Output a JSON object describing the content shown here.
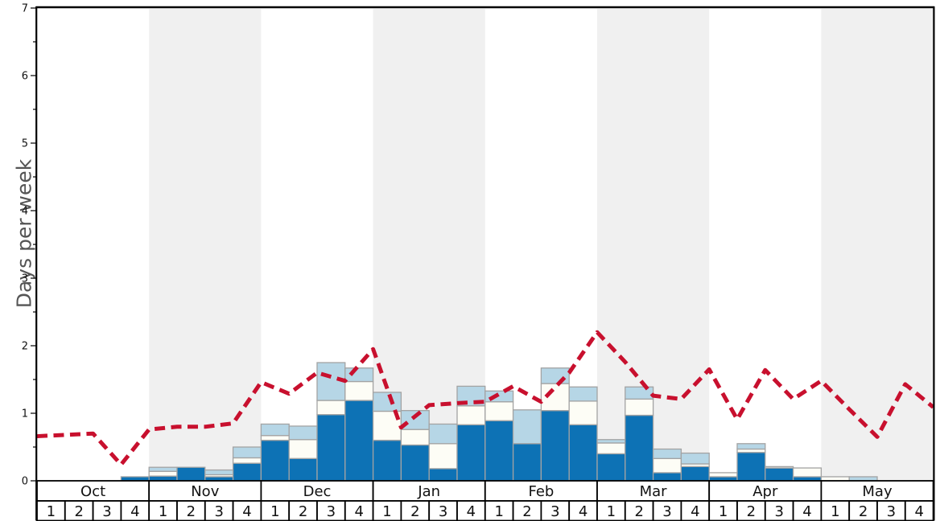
{
  "chart_data": {
    "type": "bar",
    "subtype": "weekly_stacked_bars_with_dashed_average_line",
    "title": "",
    "xlabel": "",
    "ylabel": "Days per week",
    "ylim": [
      0,
      7
    ],
    "y_major_ticks": [
      0,
      1,
      2,
      3,
      4,
      5,
      6,
      7
    ],
    "y_minor_tick_step": 0.5,
    "grid": "off",
    "legend": "none",
    "months": [
      "Oct",
      "Nov",
      "Dec",
      "Jan",
      "Feb",
      "Mar",
      "Apr",
      "May"
    ],
    "weeks_per_month": 4,
    "week_labels": [
      "1",
      "2",
      "3",
      "4"
    ],
    "shaded_months": [
      "Nov",
      "Jan",
      "Mar",
      "May"
    ],
    "series": [
      {
        "name": "dark_blue_days",
        "color": "#0d72b5",
        "values": [
          0,
          0,
          0,
          0.06,
          0.07,
          0.2,
          0.06,
          0.26,
          0.6,
          0.33,
          0.98,
          1.19,
          0.6,
          0.53,
          0.18,
          0.83,
          0.89,
          0.55,
          1.04,
          0.83,
          0.4,
          0.97,
          0.12,
          0.21,
          0.06,
          0.42,
          0.19,
          0.06,
          0,
          0,
          0,
          0
        ]
      },
      {
        "name": "offwhite_days",
        "color": "#fdfdf6",
        "values": [
          0,
          0,
          0,
          0,
          0.07,
          0,
          0.03,
          0.08,
          0.07,
          0.28,
          0.21,
          0.28,
          0.43,
          0.23,
          0.37,
          0.28,
          0.28,
          0,
          0.4,
          0.35,
          0.16,
          0.24,
          0.21,
          0.04,
          0.06,
          0.05,
          0.02,
          0.13,
          0.06,
          0,
          0,
          0
        ]
      },
      {
        "name": "light_blue_days",
        "color": "#b6d6e6",
        "values": [
          0,
          0,
          0,
          0,
          0.06,
          0,
          0.07,
          0.16,
          0.17,
          0.2,
          0.56,
          0.2,
          0.28,
          0.28,
          0.29,
          0.29,
          0.16,
          0.5,
          0.23,
          0.21,
          0.05,
          0.18,
          0.14,
          0.16,
          0,
          0.08,
          0,
          0,
          0,
          0.06,
          0,
          0
        ]
      }
    ],
    "line_series": {
      "name": "dashed_average_line",
      "color": "#c8102e",
      "style": "dashed",
      "x_positions": "week_boundaries",
      "values": [
        0.66,
        0.68,
        0.7,
        0.24,
        0.76,
        0.8,
        0.8,
        0.85,
        1.46,
        1.29,
        1.6,
        1.48,
        1.95,
        0.79,
        1.12,
        1.15,
        1.17,
        1.4,
        1.17,
        1.6,
        2.2,
        1.76,
        1.26,
        1.21,
        1.65,
        0.91,
        1.64,
        1.21,
        1.48,
        1.06,
        0.65,
        1.43,
        1.09
      ]
    },
    "colors": {
      "month_band": "#f0f0f0",
      "bar_border": "#a3a3a3",
      "frame": "#000000",
      "baseline": "#888888",
      "tick_label": "#111111",
      "cell_background": "#ffffff",
      "cell_border": "#000000",
      "cell_text": "#111111",
      "axis_title": "#555555"
    }
  }
}
